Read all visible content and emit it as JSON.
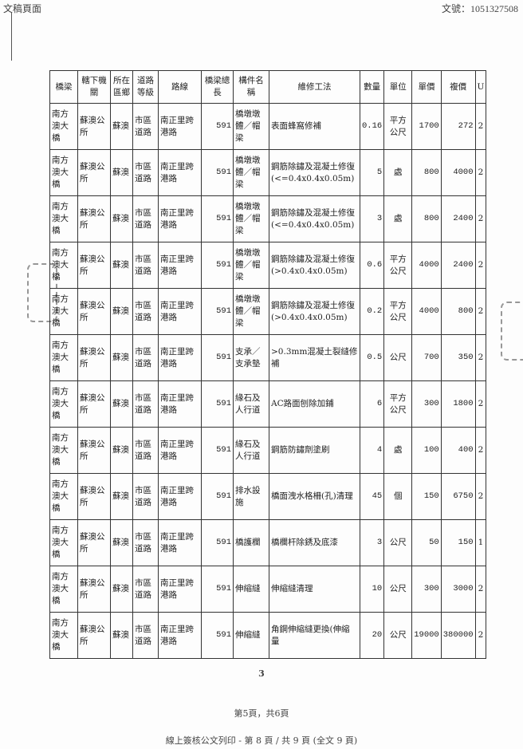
{
  "header": {
    "left": "文稿頁面",
    "right": "文號：1051327508"
  },
  "table": {
    "columns": [
      "橋梁",
      "轄下機關",
      "所在區鄉",
      "道路等級",
      "路線",
      "橋梁總長",
      "構件名稱",
      "維修工法",
      "數量",
      "單位",
      "單價",
      "複價",
      "U"
    ],
    "rows": [
      [
        "南方澳大橋",
        "蘇澳公所",
        "蘇澳",
        "市區道路",
        "南正里跨港路",
        "591",
        "橋墩墩體／帽梁",
        "表面蜂窩修補",
        "0.16",
        "平方公尺",
        "1700",
        "272",
        "2"
      ],
      [
        "南方澳大橋",
        "蘇澳公所",
        "蘇澳",
        "市區道路",
        "南正里跨港路",
        "591",
        "橋墩墩體／帽梁",
        "鋼筋除鏽及混凝土修復(<=0.4x0.4x0.05m)",
        "5",
        "處",
        "800",
        "4000",
        "2"
      ],
      [
        "南方澳大橋",
        "蘇澳公所",
        "蘇澳",
        "市區道路",
        "南正里跨港路",
        "591",
        "橋墩墩體／帽梁",
        "鋼筋除鏽及混凝土修復(<=0.4x0.4x0.05m)",
        "3",
        "處",
        "800",
        "2400",
        "2"
      ],
      [
        "南方澳大橋",
        "蘇澳公所",
        "蘇澳",
        "市區道路",
        "南正里跨港路",
        "591",
        "橋墩墩體／帽梁",
        "鋼筋除鏽及混凝土修復(>0.4x0.4x0.05m)",
        "0.6",
        "平方公尺",
        "4000",
        "2400",
        "2"
      ],
      [
        "南方澳大橋",
        "蘇澳公所",
        "蘇澳",
        "市區道路",
        "南正里跨港路",
        "591",
        "橋墩墩體／帽梁",
        "鋼筋除鏽及混凝土修復(>0.4x0.4x0.05m)",
        "0.2",
        "平方公尺",
        "4000",
        "800",
        "2"
      ],
      [
        "南方澳大橋",
        "蘇澳公所",
        "蘇澳",
        "市區道路",
        "南正里跨港路",
        "591",
        "支承／支承墊",
        ">0.3mm混凝土裂縫修補",
        "0.5",
        "公尺",
        "700",
        "350",
        "2"
      ],
      [
        "南方澳大橋",
        "蘇澳公所",
        "蘇澳",
        "市區道路",
        "南正里跨港路",
        "591",
        "緣石及人行道",
        "AC路面刨除加鋪",
        "6",
        "平方公尺",
        "300",
        "1800",
        "2"
      ],
      [
        "南方澳大橋",
        "蘇澳公所",
        "蘇澳",
        "市區道路",
        "南正里跨港路",
        "591",
        "緣石及人行道",
        "鋼筋防鏽劑塗刷",
        "4",
        "處",
        "100",
        "400",
        "2"
      ],
      [
        "南方澳大橋",
        "蘇澳公所",
        "蘇澳",
        "市區道路",
        "南正里跨港路",
        "591",
        "排水設施",
        "橋面洩水格柵(孔)清理",
        "45",
        "個",
        "150",
        "6750",
        "2"
      ],
      [
        "南方澳大橋",
        "蘇澳公所",
        "蘇澳",
        "市區道路",
        "南正里跨港路",
        "591",
        "橋護欄",
        "橋欄杆除銹及底漆",
        "3",
        "公尺",
        "50",
        "150",
        "1"
      ],
      [
        "南方澳大橋",
        "蘇澳公所",
        "蘇澳",
        "市區道路",
        "南正里跨港路",
        "591",
        "伸縮縫",
        "伸縮縫清理",
        "10",
        "公尺",
        "300",
        "3000",
        "2"
      ],
      [
        "南方澳大橋",
        "蘇澳公所",
        "蘇澳",
        "市區道路",
        "南正里跨港路",
        "591",
        "伸縮縫",
        "角鋼伸縮縫更換(伸縮量",
        "20",
        "公尺",
        "19000",
        "380000",
        "2"
      ]
    ]
  },
  "page_number": "3",
  "page_of": "第5頁，共6頁",
  "footer": "線上簽核公文列印 - 第 8 頁 / 共 9 頁 (全文 9 頁)"
}
